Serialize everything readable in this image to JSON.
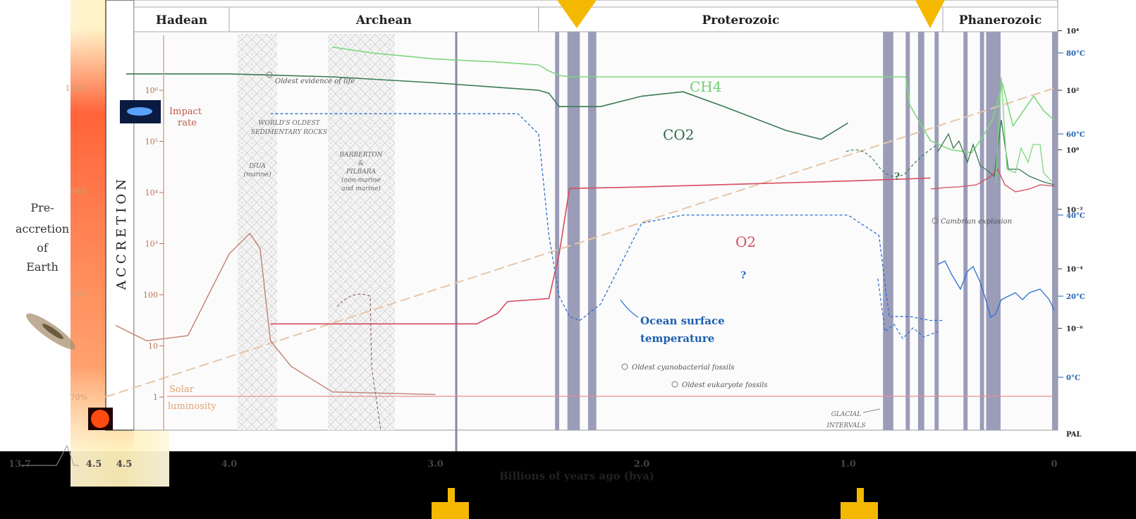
{
  "chart_data": {
    "type": "line",
    "xlabel": "Billions of years ago (bya)",
    "x_ticks": [
      "13.7",
      "4.5",
      "4.5",
      "4.0",
      "3.0",
      "2.0",
      "1.0",
      "0"
    ],
    "xlim": [
      4.6,
      0
    ],
    "eons": [
      {
        "name": "Hadean",
        "start": 4.6,
        "end": 4.0
      },
      {
        "name": "Archean",
        "start": 4.0,
        "end": 2.5
      },
      {
        "name": "Proterozoic",
        "start": 2.5,
        "end": 0.54
      },
      {
        "name": "Phanerozoic",
        "start": 0.54,
        "end": 0
      }
    ],
    "left_axis_ticks": [
      "10⁶",
      "10⁵",
      "10⁴",
      "10³",
      "100",
      "10",
      "1"
    ],
    "luminosity_ticks": [
      "100%",
      "90%",
      "80%",
      "70%"
    ],
    "right_axis_ticks": [
      "10⁴",
      "10²",
      "10⁰",
      "10⁻²",
      "10⁻⁴",
      "10⁻⁶",
      "PAL"
    ],
    "temp_ticks": [
      "80°C",
      "60°C",
      "40°C",
      "20°C",
      "0°C"
    ],
    "right_values": [
      4,
      2,
      0,
      -2,
      -4,
      -6
    ],
    "temp_values": [
      80,
      60,
      40,
      20,
      0
    ],
    "left_values": [
      6,
      5,
      4,
      3,
      2,
      1,
      0
    ],
    "lum_values": [
      100,
      90,
      80,
      70
    ],
    "glacial_intervals": [
      [
        2.42,
        2.4
      ],
      [
        2.36,
        2.3
      ],
      [
        2.26,
        2.22
      ],
      [
        0.83,
        0.78
      ],
      [
        0.72,
        0.7
      ],
      [
        0.66,
        0.63
      ],
      [
        0.58,
        0.56
      ],
      [
        0.44,
        0.42
      ],
      [
        0.36,
        0.34
      ],
      [
        0.33,
        0.26
      ]
    ],
    "series": [
      {
        "name": "CH4",
        "color": "#7fd87f",
        "x": [
          3.5,
          3.3,
          3.0,
          2.7,
          2.5,
          2.45,
          2.4,
          2.35,
          2.0,
          1.5,
          1.0,
          0.72,
          0.7,
          0.6,
          0.5,
          0.4,
          0.35,
          0.3,
          0.25,
          0.2,
          0.15,
          0.1,
          0.05,
          0
        ],
        "y": [
          3.45,
          3.25,
          3.05,
          2.95,
          2.85,
          2.65,
          2.5,
          2.45,
          2.45,
          2.45,
          2.45,
          2.45,
          1.5,
          0.3,
          0.0,
          -0.1,
          0.4,
          1.0,
          2.2,
          0.8,
          1.3,
          1.8,
          1.3,
          1.0
        ]
      },
      {
        "name": "CO2",
        "color": "#3a7a55",
        "x": [
          4.5,
          4.0,
          3.5,
          3.0,
          2.7,
          2.5,
          2.45,
          2.4,
          2.2,
          2.0,
          1.8,
          1.6,
          1.3,
          1.13,
          1.0
        ],
        "y": [
          2.55,
          2.55,
          2.45,
          2.25,
          2.1,
          2.0,
          1.9,
          1.45,
          1.45,
          1.8,
          1.95,
          1.45,
          0.65,
          0.35,
          0.9
        ]
      },
      {
        "name": "O2",
        "color": "#d84a5e",
        "x": [
          3.8,
          3.5,
          3.0,
          2.8,
          2.7,
          2.65,
          2.45,
          2.4,
          2.35,
          2.0,
          1.5,
          1.0,
          0.6
        ],
        "y": [
          -5.85,
          -5.85,
          -5.85,
          -5.85,
          -5.5,
          -5.1,
          -5.0,
          -3.5,
          -1.3,
          -1.25,
          -1.15,
          -1.05,
          -0.95
        ]
      },
      {
        "name": "Ocean surface temperature",
        "color": "#2f6fd0",
        "x": [
          3.8,
          3.0,
          2.6,
          2.5,
          2.45,
          2.4,
          2.35,
          2.3,
          2.2,
          2.0,
          1.8,
          1.5,
          1.2,
          1.0,
          0.85,
          0.8,
          0.7,
          0.6,
          0.54
        ],
        "y": [
          65,
          65,
          65,
          60,
          35,
          20,
          15,
          14,
          18,
          38,
          40,
          40,
          40,
          40,
          35,
          15,
          15,
          14,
          14
        ]
      }
    ],
    "solar_luminosity": {
      "x": [
        4.6,
        0
      ],
      "y": [
        70,
        100
      ]
    },
    "impact_rate": {
      "x": [
        4.55,
        4.4,
        4.2,
        4.0,
        3.9,
        3.85,
        3.8,
        3.7,
        3.5,
        3.0
      ],
      "y": [
        1.4,
        1.1,
        1.2,
        2.8,
        3.2,
        2.9,
        1.1,
        0.6,
        0.1,
        0.05
      ]
    }
  },
  "labels": {
    "pre_accretion": [
      "Pre-",
      "accretion",
      "of",
      "Earth"
    ],
    "accretion": "ACCRETION",
    "impact": [
      "Impact",
      "rate"
    ],
    "solar": [
      "Solar",
      "luminosity"
    ],
    "ch4": "CH4",
    "co2": "CO2",
    "o2": "O2",
    "ocean": [
      "Ocean surface",
      "temperature"
    ],
    "oldest_life": "Oldest evidence of life",
    "rocks": [
      "WORLD'S OLDEST",
      "SEDIMENTARY ROCKS"
    ],
    "isua": [
      "ISUA",
      "(marine)"
    ],
    "barberton": [
      "BARBERTON",
      "&",
      "PILBARA",
      "(non-marine",
      "and marine)"
    ],
    "cyano": "Oldest cyanobacterial fossils",
    "eukaryote": "Oldest eukaryote fossils",
    "cambrian": "Cambrian explosion",
    "glacial": [
      "GLACIAL",
      "INTERVALS"
    ],
    "question": "?"
  },
  "colors": {
    "ch4": "#7fd87f",
    "co2": "#3a7a55",
    "o2": "#d84a5e",
    "ocean": "#2f6fd0",
    "solar": "#e8c8a8",
    "impact": "#c07a6a",
    "glacial": "#9a9cb8",
    "arrow": "#f5b800"
  }
}
